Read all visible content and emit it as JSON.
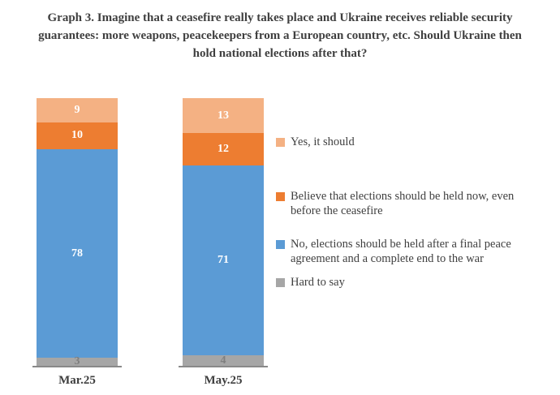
{
  "chart_data": {
    "type": "bar",
    "stacked": true,
    "title": "Graph 3. Imagine that a ceasefire really takes place and Ukraine receives reliable security guarantees: more weapons, peacekeepers from a European country, etc. Should Ukraine then hold national elections after that?",
    "categories": [
      "Mar.25",
      "May.25"
    ],
    "series": [
      {
        "name": "Yes, it should",
        "color": "#f4b183",
        "label_color": "#ffffff",
        "values": [
          9,
          13
        ]
      },
      {
        "name": "Believe that elections should be held now, even before the ceasefire",
        "color": "#ed7d31",
        "label_color": "#ffffff",
        "values": [
          10,
          12
        ]
      },
      {
        "name": "No, elections should be held after a final peace agreement and a complete end to the war",
        "color": "#5b9bd5",
        "label_color": "#ffffff",
        "values": [
          78,
          71
        ]
      },
      {
        "name": "Hard to say",
        "color": "#a6a6a6",
        "label_color": "#7f7f7f",
        "values": [
          3,
          4
        ]
      }
    ],
    "xlabel": "",
    "ylabel": "",
    "ylim": [
      0,
      100
    ],
    "grid": false,
    "legend_position": "right",
    "stacking_order": "top-to-bottom in series order"
  }
}
